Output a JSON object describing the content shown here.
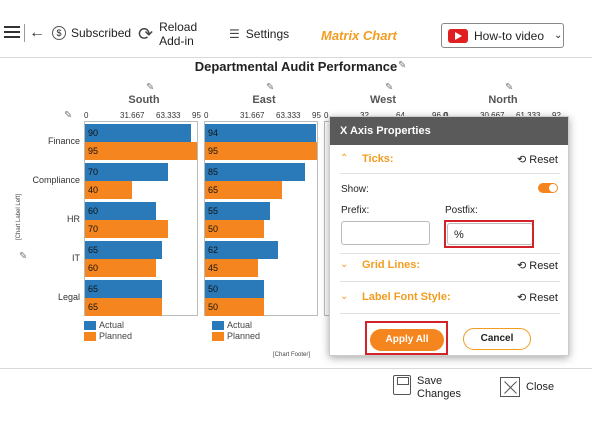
{
  "toolbar": {
    "subscribed": "Subscribed",
    "reload_line1": "Reload",
    "reload_line2": "Add-in",
    "settings": "Settings",
    "brand": "Matrix Chart",
    "howto": "How-to video"
  },
  "chart": {
    "title": "Departmental Audit Performance",
    "y_axis_label": "[Chart Label Left]",
    "footer_label": "[Chart Footer]",
    "legend_actual": "Actual",
    "legend_planned": "Planned"
  },
  "chart_data": {
    "type": "bar",
    "orientation": "horizontal",
    "title": "Departmental Audit Performance",
    "panels": [
      "South",
      "East",
      "West",
      "North"
    ],
    "categories": [
      "Finance",
      "Compliance",
      "HR",
      "IT",
      "Legal"
    ],
    "ticks": {
      "South": [
        "0",
        "31.667",
        "63.333",
        "95"
      ],
      "East": [
        "0",
        "31.667",
        "63.333",
        "95"
      ],
      "West": [
        "0",
        "32",
        "64",
        "96.0"
      ],
      "North": [
        "0",
        "30.667",
        "61.333",
        "92"
      ]
    },
    "series": [
      {
        "name": "Actual",
        "color": "#2a7ab9",
        "South": [
          90,
          70,
          60,
          65,
          65
        ],
        "East": [
          94,
          85,
          55,
          62,
          50
        ]
      },
      {
        "name": "Planned",
        "color": "#f5861f",
        "South": [
          95,
          40,
          70,
          60,
          65
        ],
        "East": [
          95,
          65,
          50,
          45,
          50
        ]
      }
    ],
    "xlim": [
      0,
      95
    ]
  },
  "dialog": {
    "title": "X Axis Properties",
    "ticks_title": "Ticks:",
    "reset": "Reset",
    "show": "Show:",
    "prefix_label": "Prefix:",
    "postfix_label": "Postfix:",
    "prefix_value": "",
    "postfix_value": "%",
    "grid_lines": "Grid Lines:",
    "label_font_style": "Label Font Style:",
    "apply_all": "Apply All",
    "cancel": "Cancel"
  },
  "bottom": {
    "save_line1": "Save",
    "save_line2": "Changes",
    "close": "Close"
  },
  "colors": {
    "accent": "#f39c1f",
    "actual": "#2a7ab9",
    "planned": "#f5861f",
    "highlight": "#d2232a"
  },
  "icons": [
    "menu-icon",
    "back-icon",
    "dollar-icon",
    "refresh-icon",
    "sliders-icon",
    "youtube-icon",
    "chevron-down-icon",
    "pencil-icon",
    "floppy-icon",
    "close-icon"
  ]
}
